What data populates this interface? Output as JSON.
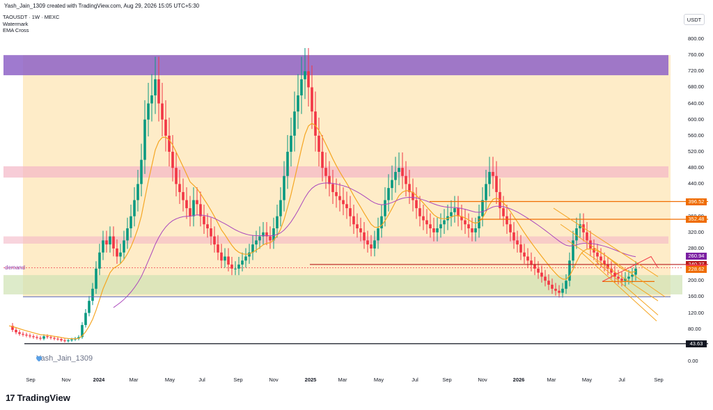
{
  "caption": "Yash_Jain_1309 created with TradingView.com, Aug 29, 2026 15:05 UTC+5:30",
  "indicators": [
    "TAOUSDT · 1W · MEXC",
    "Watermark",
    "EMA Cross"
  ],
  "currency_button": "USDT",
  "demand_label": "demand",
  "watermark_text": "Yash_Jain_1309",
  "logo_text": "TradingView",
  "price_ticks": [
    "800.00",
    "760.00",
    "720.00",
    "680.00",
    "640.00",
    "600.00",
    "560.00",
    "520.00",
    "480.00",
    "440.00",
    "400.00",
    "360.00",
    "320.00",
    "280.00",
    "240.00",
    "200.00",
    "160.00",
    "120.00",
    "80.00",
    "40.00",
    "0.00"
  ],
  "price_tags": [
    {
      "label": "396.52",
      "value": 396.52,
      "color": "#ef6c00"
    },
    {
      "label": "352.48",
      "value": 352.48,
      "color": "#ef6c00"
    },
    {
      "label": "260.94",
      "value": 260.94,
      "color": "#7b1fa2"
    },
    {
      "label": "240.27",
      "value": 240.27,
      "color": "#b71c1c"
    },
    {
      "label": "232.35",
      "value": 232.35,
      "color": "#f23645"
    },
    {
      "label": "228.62",
      "value": 228.62,
      "color": "#ef6c00"
    },
    {
      "label": "43.63",
      "value": 43.63,
      "color": "#131722"
    }
  ],
  "time_ticks": [
    {
      "label": "Sep",
      "bold": false
    },
    {
      "label": "Nov",
      "bold": false
    },
    {
      "label": "2024",
      "bold": true
    },
    {
      "label": "Mar",
      "bold": false
    },
    {
      "label": "May",
      "bold": false
    },
    {
      "label": "Jul",
      "bold": false
    },
    {
      "label": "Sep",
      "bold": false
    },
    {
      "label": "Nov",
      "bold": false
    },
    {
      "label": "2025",
      "bold": true
    },
    {
      "label": "Mar",
      "bold": false
    },
    {
      "label": "May",
      "bold": false
    },
    {
      "label": "Jul",
      "bold": false
    },
    {
      "label": "Sep",
      "bold": false
    },
    {
      "label": "Nov",
      "bold": false
    },
    {
      "label": "2026",
      "bold": true
    },
    {
      "label": "Mar",
      "bold": false
    },
    {
      "label": "May",
      "bold": false
    },
    {
      "label": "Jul",
      "bold": false
    },
    {
      "label": "Sep",
      "bold": false
    }
  ],
  "colors": {
    "up": "#089981",
    "down": "#f23645",
    "ema_fast": "#f5a623",
    "ema_slow": "#ab47bc",
    "zone_bg": "#fde5b6",
    "top_zone": "#8e63c7",
    "pink_zone": "#f3b7c6",
    "green_zone": "#cfe3b4"
  },
  "closes": [
    88,
    78,
    72,
    68,
    66,
    64,
    62,
    60,
    58,
    56,
    62,
    60,
    58,
    56,
    55,
    52,
    50,
    52,
    54,
    56,
    60,
    90,
    120,
    150,
    180,
    230,
    270,
    300,
    290,
    310,
    280,
    260,
    270,
    300,
    330,
    360,
    400,
    440,
    500,
    600,
    640,
    660,
    700,
    640,
    600,
    560,
    520,
    480,
    440,
    420,
    400,
    380,
    360,
    400,
    390,
    360,
    340,
    330,
    310,
    290,
    270,
    250,
    260,
    240,
    230,
    230,
    240,
    250,
    260,
    270,
    290,
    300,
    310,
    320,
    310,
    300,
    330,
    360,
    400,
    460,
    520,
    560,
    620,
    660,
    700,
    720,
    680,
    620,
    560,
    520,
    480,
    460,
    440,
    420,
    410,
    400,
    390,
    380,
    360,
    340,
    330,
    320,
    300,
    290,
    280,
    300,
    330,
    360,
    400,
    430,
    450,
    470,
    480,
    460,
    440,
    420,
    400,
    380,
    360,
    350,
    340,
    330,
    320,
    330,
    340,
    350,
    360,
    370,
    380,
    360,
    350,
    340,
    330,
    320,
    330,
    360,
    400,
    440,
    470,
    460,
    420,
    380,
    360,
    340,
    320,
    300,
    290,
    270,
    260,
    250,
    240,
    230,
    220,
    210,
    200,
    190,
    180,
    175,
    170,
    180,
    200,
    250,
    300,
    330,
    340,
    320,
    300,
    280,
    270,
    260,
    250,
    240,
    230,
    220,
    210,
    205,
    200,
    205,
    210,
    215,
    230
  ]
}
